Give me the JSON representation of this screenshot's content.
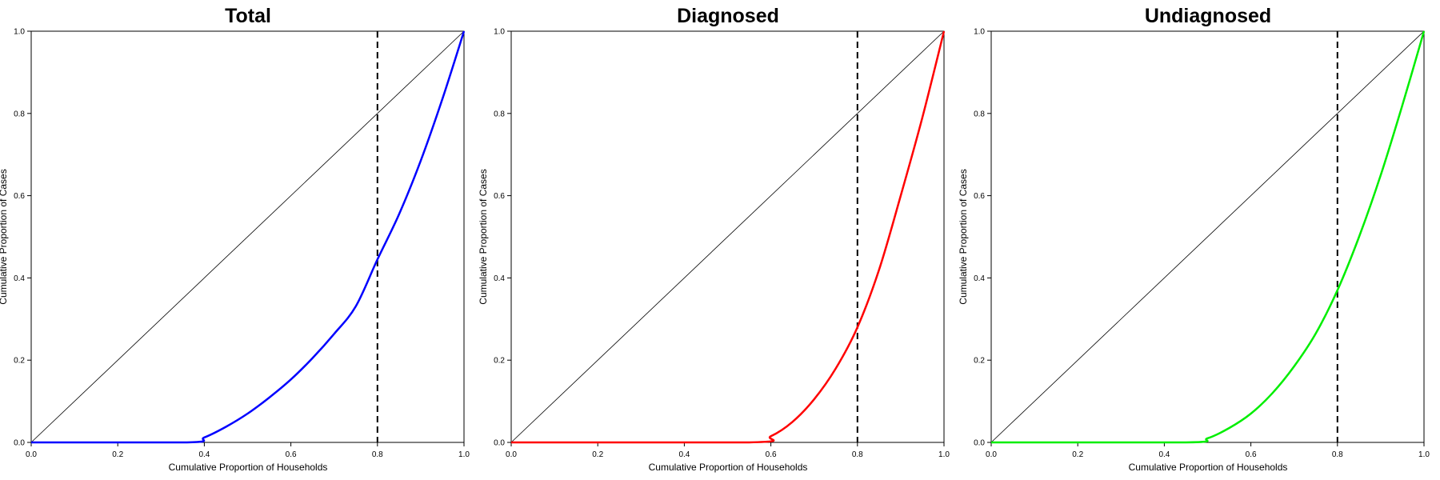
{
  "chart_data": [
    {
      "type": "line",
      "title": "Total",
      "xlabel": "Cumulative Proportion of Households",
      "ylabel": "Cumulative Proportion of Cases",
      "xlim": [
        0,
        1
      ],
      "ylim": [
        0,
        1
      ],
      "xticks": [
        "0.0",
        "0.2",
        "0.4",
        "0.6",
        "0.8",
        "1.0"
      ],
      "yticks": [
        "0.0",
        "0.2",
        "0.4",
        "0.6",
        "0.8",
        "1.0"
      ],
      "grid": false,
      "reference_line": {
        "x": [
          0,
          1
        ],
        "y": [
          0,
          1
        ],
        "color": "#000000"
      },
      "vline": {
        "x": 0.8,
        "style": "dashed",
        "color": "#000000"
      },
      "series": [
        {
          "color": "#0000ff",
          "x": [
            0,
            0.36,
            0.4,
            0.45,
            0.5,
            0.55,
            0.6,
            0.65,
            0.7,
            0.75,
            0.8,
            0.85,
            0.9,
            0.95,
            1.0
          ],
          "y": [
            0,
            0,
            0.012,
            0.038,
            0.07,
            0.109,
            0.153,
            0.205,
            0.264,
            0.331,
            0.445,
            0.555,
            0.685,
            0.835,
            1.0
          ]
        }
      ]
    },
    {
      "type": "line",
      "title": "Diagnosed",
      "xlabel": "Cumulative Proportion of Households",
      "ylabel": "Cumulative Proportion of Cases",
      "xlim": [
        0,
        1
      ],
      "ylim": [
        0,
        1
      ],
      "xticks": [
        "0.0",
        "0.2",
        "0.4",
        "0.6",
        "0.8",
        "1.0"
      ],
      "yticks": [
        "0.0",
        "0.2",
        "0.4",
        "0.6",
        "0.8",
        "1.0"
      ],
      "grid": false,
      "reference_line": {
        "x": [
          0,
          1
        ],
        "y": [
          0,
          1
        ],
        "color": "#000000"
      },
      "vline": {
        "x": 0.8,
        "style": "dashed",
        "color": "#000000"
      },
      "series": [
        {
          "color": "#ff0000",
          "x": [
            0,
            0.55,
            0.6,
            0.65,
            0.7,
            0.75,
            0.8,
            0.85,
            0.9,
            0.95,
            1.0
          ],
          "y": [
            0,
            0,
            0.015,
            0.05,
            0.105,
            0.18,
            0.28,
            0.42,
            0.6,
            0.79,
            1.0
          ]
        }
      ]
    },
    {
      "type": "line",
      "title": "Undiagnosed",
      "xlabel": "Cumulative Proportion of Households",
      "ylabel": "Cumulative Proportion of Cases",
      "xlim": [
        0,
        1
      ],
      "ylim": [
        0,
        1
      ],
      "xticks": [
        "0.0",
        "0.2",
        "0.4",
        "0.6",
        "0.8",
        "1.0"
      ],
      "yticks": [
        "0.0",
        "0.2",
        "0.4",
        "0.6",
        "0.8",
        "1.0"
      ],
      "grid": false,
      "reference_line": {
        "x": [
          0,
          1
        ],
        "y": [
          0,
          1
        ],
        "color": "#000000"
      },
      "vline": {
        "x": 0.8,
        "style": "dashed",
        "color": "#000000"
      },
      "series": [
        {
          "color": "#00ee00",
          "x": [
            0,
            0.45,
            0.5,
            0.55,
            0.6,
            0.65,
            0.7,
            0.75,
            0.8,
            0.85,
            0.9,
            0.95,
            1.0
          ],
          "y": [
            0,
            0,
            0.01,
            0.035,
            0.07,
            0.12,
            0.185,
            0.265,
            0.37,
            0.5,
            0.65,
            0.82,
            1.0
          ]
        }
      ]
    }
  ]
}
